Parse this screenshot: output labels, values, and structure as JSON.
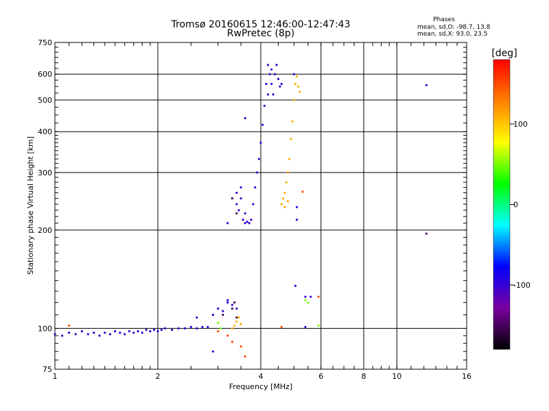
{
  "chart_data": {
    "type": "scatter",
    "title": "Tromsø 20160615 12:46:00-12:47:43",
    "subtitle": "RwPretec (8p)",
    "xlabel": "Frequency [MHz]",
    "ylabel": "Stationary phase Virtual Height [km]",
    "x_scale": "log",
    "y_scale": "log",
    "xlim": [
      1,
      16
    ],
    "ylim": [
      75,
      750
    ],
    "x_ticks": [
      1,
      2,
      4,
      6,
      8,
      10,
      16
    ],
    "y_ticks": [
      75,
      100,
      200,
      300,
      400,
      500,
      600,
      750
    ],
    "grid": true,
    "stats": {
      "header": "Phases",
      "line_o": "mean, sd,O: -98.7, 13.8",
      "line_x": "mean, sd,X:  93.0, 23.5"
    },
    "colorbar": {
      "label": "[deg]",
      "range": [
        -180,
        180
      ],
      "ticks": [
        100,
        0,
        -100
      ],
      "colors": [
        "#000000",
        "#7a00a0",
        "#0000ff",
        "#00ffff",
        "#00ff00",
        "#ffff00",
        "#ff8000",
        "#ff0000"
      ]
    },
    "series": [
      {
        "phase": -100,
        "points": [
          [
            1.0,
            96
          ],
          [
            1.05,
            95
          ],
          [
            1.1,
            97
          ],
          [
            1.15,
            96
          ],
          [
            1.2,
            98
          ],
          [
            1.25,
            96
          ],
          [
            1.3,
            97
          ],
          [
            1.35,
            95
          ],
          [
            1.4,
            97
          ],
          [
            1.45,
            96
          ],
          [
            1.5,
            98
          ],
          [
            1.55,
            97
          ],
          [
            1.6,
            96
          ],
          [
            1.65,
            98
          ],
          [
            1.7,
            97
          ],
          [
            1.75,
            98
          ],
          [
            1.8,
            97
          ],
          [
            1.85,
            99
          ],
          [
            1.9,
            98
          ],
          [
            1.95,
            99
          ],
          [
            2.0,
            98
          ],
          [
            2.05,
            99
          ],
          [
            2.1,
            100
          ],
          [
            2.2,
            99
          ],
          [
            2.3,
            100
          ],
          [
            2.4,
            100
          ],
          [
            2.5,
            101
          ],
          [
            2.6,
            100
          ],
          [
            2.7,
            101
          ],
          [
            2.8,
            101
          ],
          [
            2.6,
            108
          ],
          [
            2.9,
            110
          ],
          [
            3.0,
            115
          ],
          [
            3.1,
            113
          ],
          [
            3.2,
            120
          ],
          [
            3.3,
            118
          ],
          [
            3.4,
            115
          ],
          [
            3.2,
            122
          ],
          [
            2.9,
            85
          ],
          [
            3.4,
            240
          ],
          [
            3.4,
            260
          ],
          [
            3.45,
            230
          ],
          [
            3.5,
            250
          ],
          [
            3.5,
            270
          ],
          [
            3.55,
            215
          ],
          [
            3.6,
            210
          ],
          [
            3.6,
            225
          ],
          [
            3.65,
            212
          ],
          [
            3.7,
            210
          ],
          [
            3.75,
            215
          ],
          [
            3.8,
            240
          ],
          [
            3.85,
            270
          ],
          [
            3.9,
            300
          ],
          [
            3.95,
            330
          ],
          [
            4.0,
            370
          ],
          [
            4.05,
            420
          ],
          [
            4.1,
            480
          ],
          [
            4.15,
            560
          ],
          [
            4.2,
            640
          ],
          [
            4.25,
            600
          ],
          [
            4.3,
            560
          ],
          [
            4.35,
            520
          ],
          [
            4.4,
            600
          ],
          [
            4.45,
            640
          ],
          [
            4.5,
            580
          ],
          [
            4.55,
            550
          ],
          [
            3.6,
            440
          ],
          [
            3.2,
            210
          ],
          [
            4.2,
            520
          ],
          [
            4.3,
            620
          ],
          [
            4.6,
            560
          ],
          [
            5.0,
            600
          ],
          [
            5.1,
            235
          ],
          [
            5.1,
            215
          ],
          [
            5.05,
            135
          ],
          [
            5.4,
            125
          ],
          [
            5.6,
            125
          ],
          [
            5.4,
            101
          ],
          [
            12.2,
            555
          ]
        ]
      },
      {
        "phase": -150,
        "points": [
          [
            3.1,
            110
          ],
          [
            3.3,
            115
          ],
          [
            3.35,
            120
          ],
          [
            3.4,
            108
          ],
          [
            3.3,
            250
          ],
          [
            3.4,
            225
          ],
          [
            12.2,
            195
          ]
        ]
      },
      {
        "phase": 50,
        "points": [
          [
            3.0,
            104
          ],
          [
            3.05,
            100
          ],
          [
            5.4,
            122
          ],
          [
            5.5,
            120
          ],
          [
            5.9,
            102
          ]
        ]
      },
      {
        "phase": 110,
        "points": [
          [
            3.3,
            100
          ],
          [
            3.35,
            102
          ],
          [
            3.4,
            105
          ],
          [
            3.45,
            108
          ],
          [
            3.5,
            103
          ],
          [
            4.6,
            240
          ],
          [
            4.65,
            250
          ],
          [
            4.7,
            260
          ],
          [
            4.75,
            280
          ],
          [
            4.8,
            300
          ],
          [
            4.85,
            330
          ],
          [
            4.9,
            380
          ],
          [
            4.95,
            430
          ],
          [
            5.0,
            500
          ],
          [
            5.05,
            560
          ],
          [
            5.1,
            590
          ],
          [
            5.15,
            550
          ],
          [
            5.2,
            530
          ],
          [
            4.7,
            235
          ],
          [
            4.8,
            245
          ]
        ]
      },
      {
        "phase": 150,
        "points": [
          [
            3.0,
            98
          ],
          [
            3.2,
            95
          ],
          [
            3.3,
            91
          ],
          [
            3.5,
            88
          ],
          [
            3.6,
            82
          ],
          [
            4.6,
            101
          ],
          [
            5.3,
            262
          ],
          [
            5.9,
            125
          ],
          [
            1.1,
            102
          ]
        ]
      }
    ]
  }
}
